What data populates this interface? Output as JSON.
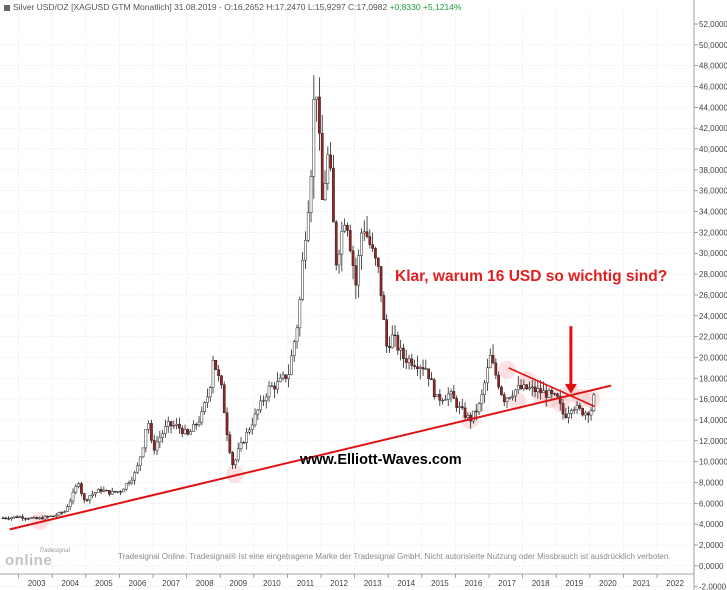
{
  "header": {
    "instrument": "Silver USD/OZ [XAGUSD GTM  Monatlich]",
    "date": "31.08.2019",
    "ohlc": "O:16,2652 H:17,2470 L:15,9297 C:17,0982",
    "change": "+0,8330 +5,1214%"
  },
  "annotation": {
    "text": "Klar, warum 16 USD so wichtig sind?"
  },
  "website": {
    "text": "www.Elliott-Waves.com"
  },
  "footer": {
    "disclaimer": "Tradesignal Online. Tradesignal® ist eine eingetragene Marke der Tradesignal GmbH. Nicht autorisierte Nutzung oder Missbrauch ist ausdrücklich verboten.",
    "logo_brand": "Tradesignal",
    "logo_text": "online"
  },
  "colors": {
    "up": "#1a9c3a",
    "annotation": "#e02020",
    "trendline": "#e01010",
    "highlight": "#f8c8c8",
    "candle": "#222222",
    "candle_down": "#a02020"
  },
  "chart_data": {
    "type": "candlestick",
    "title": "Silver USD/OZ [XAGUSD GTM  Monatlich]",
    "x_ticks": [
      "2003",
      "2004",
      "2005",
      "2006",
      "2007",
      "2008",
      "2009",
      "2010",
      "2011",
      "2012",
      "2013",
      "2014",
      "2015",
      "2016",
      "2017",
      "2018",
      "2019",
      "2020",
      "2021",
      "2022"
    ],
    "y_ticks": [
      "-2,0000",
      "0,0000",
      "2,0000",
      "4,0000",
      "6,0000",
      "8,0000",
      "10,0000",
      "12,0000",
      "14,0000",
      "16,0000",
      "18,0000",
      "20,0000",
      "22,0000",
      "24,0000",
      "26,0000",
      "28,0000",
      "30,0000",
      "32,0000",
      "34,0000",
      "36,0000",
      "38,0000",
      "40,0000",
      "42,0000",
      "44,0000",
      "46,0000",
      "48,0000",
      "50,0000",
      "52,0000"
    ],
    "ylim": [
      -2,
      53
    ],
    "xlim": [
      2002.0,
      2023.0
    ],
    "grid": true,
    "close_series": {
      "x": [
        2002.0,
        2002.5,
        2003.0,
        2003.5,
        2003.83,
        2004.0,
        2004.25,
        2004.4,
        2004.6,
        2004.9,
        2005.2,
        2005.5,
        2005.9,
        2006.0,
        2006.2,
        2006.3,
        2006.45,
        2006.6,
        2006.9,
        2007.2,
        2007.5,
        2007.9,
        2008.15,
        2008.25,
        2008.5,
        2008.7,
        2008.85,
        2009.0,
        2009.3,
        2009.6,
        2009.9,
        2010.2,
        2010.5,
        2010.8,
        2010.95,
        2011.15,
        2011.3,
        2011.5,
        2011.7,
        2011.9,
        2012.2,
        2012.5,
        2012.7,
        2012.9,
        2013.2,
        2013.4,
        2013.6,
        2013.9,
        2014.3,
        2014.6,
        2014.9,
        2015.3,
        2015.6,
        2015.9,
        2016.2,
        2016.5,
        2016.9,
        2017.3,
        2017.6,
        2017.9,
        2018.2,
        2018.5,
        2018.7,
        2018.95,
        2019.1,
        2019.3,
        2019.5,
        2019.66
      ],
      "y": [
        4.6,
        4.7,
        4.5,
        4.8,
        5.2,
        6.3,
        8.1,
        6.2,
        6.8,
        7.3,
        7.0,
        7.2,
        8.7,
        9.5,
        12.0,
        14.5,
        11.0,
        12.0,
        13.5,
        13.4,
        12.5,
        14.3,
        17.0,
        20.0,
        17.0,
        12.0,
        9.5,
        11.0,
        13.0,
        15.0,
        17.0,
        17.5,
        18.5,
        24.0,
        30.5,
        37.0,
        48.0,
        35.0,
        40.0,
        29.0,
        34.0,
        27.0,
        33.0,
        31.0,
        28.0,
        21.0,
        22.0,
        20.0,
        19.5,
        19.0,
        16.0,
        16.5,
        15.0,
        14.0,
        15.5,
        20.0,
        16.0,
        17.0,
        17.0,
        16.8,
        16.5,
        16.0,
        14.3,
        15.5,
        15.0,
        14.7,
        15.0,
        17.1
      ]
    },
    "support_line": {
      "x": [
        2002.2,
        2020.1
      ],
      "y": [
        3.5,
        17.3
      ]
    },
    "resistance_line": {
      "x": [
        2017.05,
        2019.6
      ],
      "y": [
        19.0,
        15.3
      ]
    },
    "highlights": [
      {
        "x": 2003.1,
        "y": 4.3
      },
      {
        "x": 2008.9,
        "y": 8.8
      },
      {
        "x": 2015.9,
        "y": 14.0
      },
      {
        "x": 2017.0,
        "y": 18.8
      },
      {
        "x": 2017.3,
        "y": 15.8
      },
      {
        "x": 2017.6,
        "y": 17.8
      },
      {
        "x": 2018.0,
        "y": 16.5
      },
      {
        "x": 2018.3,
        "y": 16.0
      },
      {
        "x": 2018.6,
        "y": 15.6
      },
      {
        "x": 2018.9,
        "y": 16.6
      },
      {
        "x": 2019.2,
        "y": 16.1
      },
      {
        "x": 2019.5,
        "y": 16.0
      }
    ],
    "arrow": {
      "x": 2018.9,
      "y_from": 23.0,
      "y_to": 16.5
    }
  }
}
